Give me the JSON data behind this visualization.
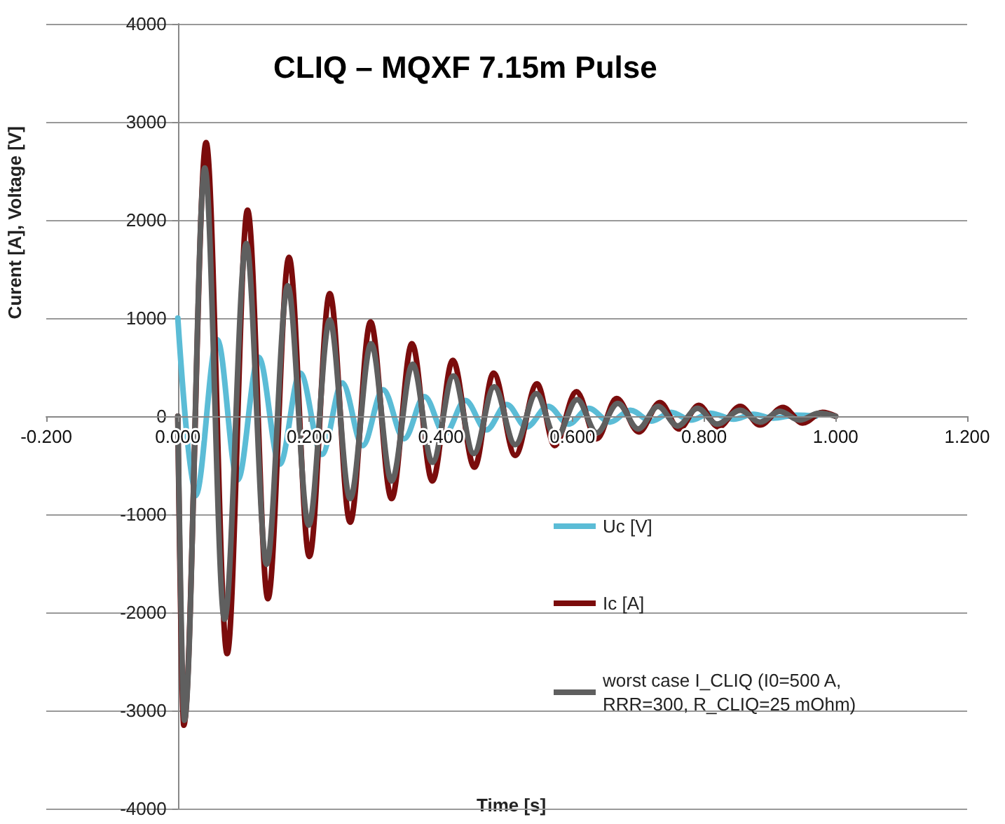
{
  "chart_data": {
    "type": "line",
    "title": "CLIQ – MQXF 7.15m Pulse",
    "xlabel": "Time [s]",
    "ylabel": "Curent [A], Voltage [V]",
    "xlim": [
      -0.2,
      1.2
    ],
    "xticks": [
      {
        "value": -0.2,
        "label": "-0.200"
      },
      {
        "value": 0,
        "label": "0.000"
      },
      {
        "value": 0.2,
        "label": "0.200"
      },
      {
        "value": 0.4,
        "label": "0.400"
      },
      {
        "value": 0.6,
        "label": "0.600"
      },
      {
        "value": 0.8,
        "label": "0.800"
      },
      {
        "value": 1.0,
        "label": "1.000"
      },
      {
        "value": 1.2,
        "label": "1.200"
      }
    ],
    "ylim": [
      -4000,
      4000
    ],
    "yticks": [
      -4000,
      -3000,
      -2000,
      -1000,
      0,
      1000,
      2000,
      3000,
      4000
    ],
    "grid": "y",
    "legend": "bottom right",
    "marker": "none",
    "line_style": "solid",
    "series": [
      {
        "name": "Uc [V]",
        "color": "#5bbcd6",
        "x": [
          0,
          0.027,
          0.06,
          0.091,
          0.123,
          0.155,
          0.186,
          0.219,
          0.25,
          0.281,
          0.312,
          0.344,
          0.375,
          0.406,
          0.437,
          0.469,
          0.5,
          0.53,
          0.563,
          0.594,
          0.625,
          0.657,
          0.688,
          0.72,
          0.75,
          0.78,
          0.81,
          0.845,
          0.875,
          0.905,
          0.94,
          0.97
        ],
        "values": [
          1000,
          -810,
          780,
          -650,
          600,
          -490,
          440,
          -390,
          340,
          -300,
          270,
          -230,
          200,
          -180,
          160,
          -140,
          120,
          -110,
          100,
          -80,
          80,
          -60,
          60,
          -50,
          40,
          -40,
          30,
          -30,
          20,
          -20,
          10,
          0
        ]
      },
      {
        "name": "Ic [A]",
        "color": "#7b0c0c",
        "x": [
          0,
          0.009,
          0.043,
          0.075,
          0.106,
          0.137,
          0.169,
          0.2,
          0.231,
          0.262,
          0.293,
          0.325,
          0.356,
          0.387,
          0.418,
          0.451,
          0.48,
          0.513,
          0.546,
          0.573,
          0.606,
          0.637,
          0.667,
          0.701,
          0.733,
          0.762,
          0.792,
          0.822,
          0.855,
          0.885,
          0.92,
          0.95,
          0.98,
          1.0
        ],
        "values": [
          0,
          -3150,
          2790,
          -2420,
          2100,
          -1860,
          1620,
          -1430,
          1250,
          -1080,
          960,
          -840,
          740,
          -660,
          570,
          -520,
          440,
          -400,
          330,
          -300,
          250,
          -230,
          180,
          -160,
          140,
          -130,
          110,
          -110,
          100,
          -90,
          90,
          -70,
          40,
          0
        ]
      },
      {
        "name": "worst case I_CLIQ (I0=500 A, RRR=300, R_CLIQ=25 mOhm)",
        "color": "#5f5f5f",
        "x": [
          0,
          0.01,
          0.041,
          0.071,
          0.104,
          0.135,
          0.167,
          0.199,
          0.231,
          0.262,
          0.294,
          0.325,
          0.357,
          0.387,
          0.419,
          0.45,
          0.481,
          0.513,
          0.545,
          0.575,
          0.607,
          0.637,
          0.669,
          0.7,
          0.73,
          0.76,
          0.79,
          0.82,
          0.855,
          0.885,
          0.915,
          0.945,
          0.975,
          1.0
        ],
        "values": [
          0,
          -3100,
          2530,
          -2070,
          1760,
          -1510,
          1330,
          -1110,
          980,
          -840,
          740,
          -660,
          530,
          -470,
          410,
          -380,
          300,
          -290,
          230,
          -220,
          170,
          -170,
          130,
          -130,
          100,
          -100,
          80,
          -80,
          60,
          -60,
          50,
          -40,
          30,
          0
        ]
      }
    ]
  }
}
